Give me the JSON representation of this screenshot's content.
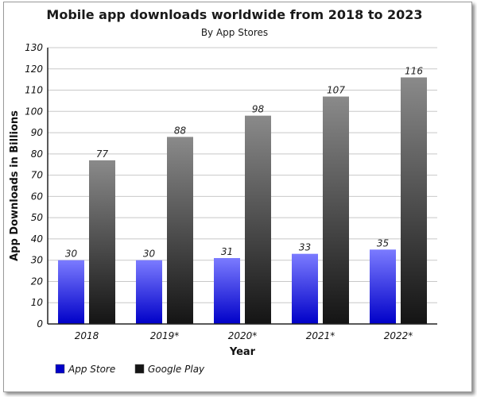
{
  "chart_data": {
    "type": "bar",
    "title": "Mobile app downloads worldwide from 2018 to 2023",
    "subtitle": "By App Stores",
    "xlabel": "Year",
    "ylabel": "App Downloads in Billions",
    "categories": [
      "2018",
      "2019*",
      "2020*",
      "2021*",
      "2022*"
    ],
    "series": [
      {
        "name": "App Store",
        "values": [
          30,
          30,
          31,
          33,
          35
        ],
        "color_top": "#7b7bff",
        "color_bottom": "#0000c8"
      },
      {
        "name": "Google Play",
        "values": [
          77,
          88,
          98,
          107,
          116
        ],
        "color_top": "#8a8a8a",
        "color_bottom": "#141414"
      }
    ],
    "ylim": [
      0,
      130
    ],
    "yticks": [
      0,
      10,
      20,
      30,
      40,
      50,
      60,
      70,
      80,
      90,
      100,
      110,
      120,
      130
    ],
    "grid": true,
    "legend_position": "bottom-left"
  }
}
